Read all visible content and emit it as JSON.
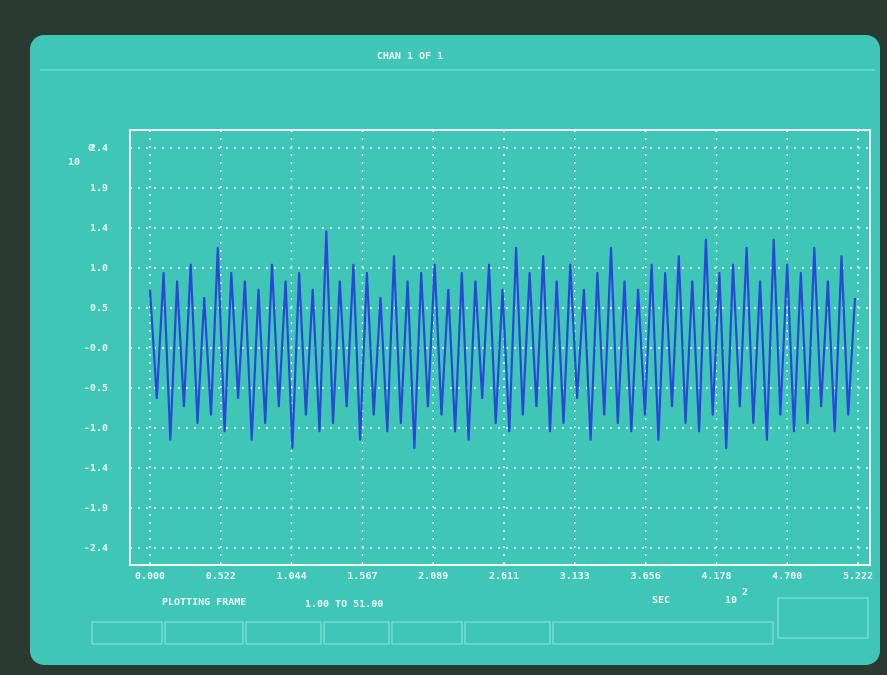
{
  "chart_data": {
    "type": "line",
    "header": "CHAN 1 OF 1",
    "y_scale_base": "10",
    "y_scale_exponent": "0",
    "x_unit": "SEC",
    "x_scale": "10",
    "x_scale_exponent": "2",
    "frame_label": "PLOTTING FRAME",
    "frame_range": "1.00 TO 51.00",
    "grid": true,
    "xlim": [
      0,
      5.222
    ],
    "ylim": [
      -2.4,
      2.4
    ],
    "xticks": [
      {
        "value": 0,
        "label": "0.000"
      },
      {
        "value": 0.522,
        "label": "0.522"
      },
      {
        "value": 1.044,
        "label": "1.044"
      },
      {
        "value": 1.567,
        "label": "1.567"
      },
      {
        "value": 2.089,
        "label": "2.089"
      },
      {
        "value": 2.611,
        "label": "2.611"
      },
      {
        "value": 3.133,
        "label": "3.133"
      },
      {
        "value": 3.656,
        "label": "3.656"
      },
      {
        "value": 4.178,
        "label": "4.178"
      },
      {
        "value": 4.7,
        "label": "4.700"
      },
      {
        "value": 5.222,
        "label": "5.222"
      }
    ],
    "yticks": [
      {
        "value": 2.4,
        "label": "2.4"
      },
      {
        "value": 1.92,
        "label": "1.9"
      },
      {
        "value": 1.44,
        "label": "1.4"
      },
      {
        "value": 0.96,
        "label": "1.0"
      },
      {
        "value": 0.48,
        "label": "0.5"
      },
      {
        "value": 0,
        "label": "-0.0"
      },
      {
        "value": -0.48,
        "label": "-0.5"
      },
      {
        "value": -0.96,
        "label": "-1.0"
      },
      {
        "value": -1.44,
        "label": "-1.4"
      },
      {
        "value": -1.92,
        "label": "-1.9"
      },
      {
        "value": -2.4,
        "label": "-2.4"
      }
    ],
    "color": "#2a48d8",
    "x": [
      0,
      0.05,
      0.1,
      0.15,
      0.2,
      0.25,
      0.3,
      0.35,
      0.4,
      0.45,
      0.5,
      0.55,
      0.6,
      0.65,
      0.7,
      0.75,
      0.8,
      0.85,
      0.9,
      0.95,
      1.0,
      1.05,
      1.1,
      1.15,
      1.2,
      1.25,
      1.3,
      1.35,
      1.4,
      1.45,
      1.5,
      1.55,
      1.6,
      1.65,
      1.7,
      1.75,
      1.8,
      1.85,
      1.9,
      1.95,
      2.0,
      2.05,
      2.1,
      2.15,
      2.2,
      2.25,
      2.3,
      2.35,
      2.4,
      2.45,
      2.5,
      2.55,
      2.6,
      2.65,
      2.7,
      2.75,
      2.8,
      2.85,
      2.9,
      2.95,
      3.0,
      3.05,
      3.1,
      3.15,
      3.2,
      3.25,
      3.3,
      3.35,
      3.4,
      3.45,
      3.5,
      3.55,
      3.6,
      3.65,
      3.7,
      3.75,
      3.8,
      3.85,
      3.9,
      3.95,
      4.0,
      4.05,
      4.1,
      4.15,
      4.2,
      4.25,
      4.3,
      4.35,
      4.4,
      4.45,
      4.5,
      4.55,
      4.6,
      4.65,
      4.7,
      4.75,
      4.8,
      4.85,
      4.9,
      4.95,
      5.0,
      5.05,
      5.1,
      5.15,
      5.2
    ],
    "values": [
      0.7,
      -0.6,
      0.9,
      -1.1,
      0.8,
      -0.7,
      1.0,
      -0.9,
      0.6,
      -0.8,
      1.2,
      -1.0,
      0.9,
      -0.6,
      0.8,
      -1.1,
      0.7,
      -0.9,
      1.0,
      -0.7,
      0.8,
      -1.2,
      0.9,
      -0.8,
      0.7,
      -1.0,
      1.4,
      -0.9,
      0.8,
      -0.7,
      1.0,
      -1.1,
      0.9,
      -0.8,
      0.6,
      -1.0,
      1.1,
      -0.9,
      0.8,
      -1.2,
      0.9,
      -0.7,
      1.0,
      -0.8,
      0.7,
      -1.0,
      0.9,
      -1.1,
      0.8,
      -0.6,
      1.0,
      -0.9,
      0.7,
      -1.0,
      1.2,
      -0.8,
      0.9,
      -0.7,
      1.1,
      -1.0,
      0.8,
      -0.9,
      1.0,
      -0.6,
      0.7,
      -1.1,
      0.9,
      -0.8,
      1.2,
      -0.9,
      0.8,
      -1.0,
      0.7,
      -0.8,
      1.0,
      -1.1,
      0.9,
      -0.7,
      1.1,
      -0.9,
      0.8,
      -1.0,
      1.3,
      -0.8,
      0.9,
      -1.2,
      1.0,
      -0.7,
      1.2,
      -0.9,
      0.8,
      -1.1,
      1.3,
      -0.8,
      1.0,
      -1.0,
      0.9,
      -0.9,
      1.2,
      -0.7,
      0.8,
      -1.0,
      1.1,
      -0.8,
      0.6
    ]
  }
}
